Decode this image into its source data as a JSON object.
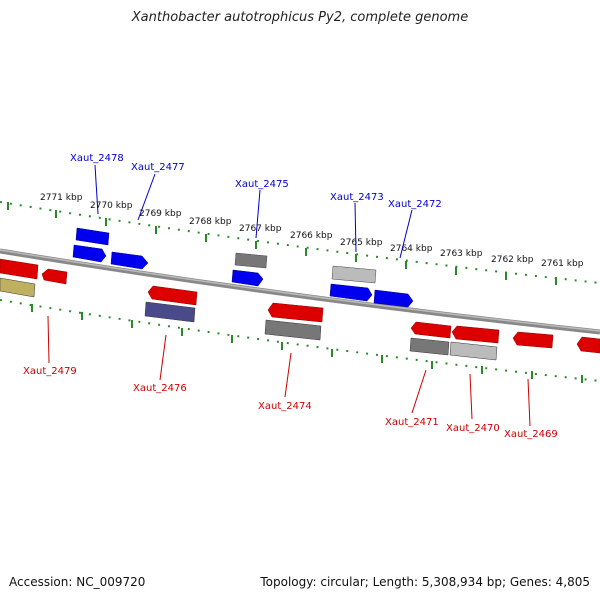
{
  "title": "Xanthobacter autotrophicus Py2, complete genome",
  "footer": {
    "accession": "Accession: NC_009720",
    "topology": "Topology: circular; Length: 5,308,934 bp; Genes: 4,805"
  },
  "colors": {
    "forward_genes": "#0000ee",
    "reverse_genes": "#dd0000",
    "forward_tick_track": "#228b22",
    "backbone": "#888888",
    "gray_gene": "#777777",
    "light_gray_gene": "#bbbbbb",
    "slate_gene": "#4a4a8a",
    "olive_gene": "#bfb060"
  },
  "scale_labels": [
    "2771 kbp",
    "2770 kbp",
    "2769 kbp",
    "2768 kbp",
    "2767 kbp",
    "2766 kbp",
    "2765 kbp",
    "2764 kbp",
    "2763 kbp",
    "2762 kbp",
    "2761 kbp"
  ],
  "forward_labels": [
    "Xaut_2478",
    "Xaut_2477",
    "Xaut_2475",
    "Xaut_2473",
    "Xaut_2472"
  ],
  "reverse_labels": [
    "Xaut_2479",
    "Xaut_2476",
    "Xaut_2474",
    "Xaut_2471",
    "Xaut_2470",
    "Xaut_2469"
  ]
}
